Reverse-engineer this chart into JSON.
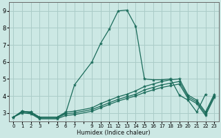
{
  "xlabel": "Humidex (Indice chaleur)",
  "bg_color": "#cce8e4",
  "grid_color": "#aaccc8",
  "line_color": "#1a6b5a",
  "xlim": [
    -0.5,
    23.5
  ],
  "ylim": [
    2.5,
    9.5
  ],
  "yticks": [
    3,
    4,
    5,
    6,
    7,
    8,
    9
  ],
  "xticks": [
    0,
    1,
    2,
    3,
    4,
    5,
    6,
    7,
    8,
    9,
    10,
    11,
    12,
    13,
    14,
    15,
    16,
    17,
    18,
    19,
    20,
    21,
    22,
    23
  ],
  "xticklabels": [
    "0",
    "1",
    "2",
    "3",
    "",
    "5",
    "6",
    "7",
    "",
    "9",
    "10",
    "11",
    "12",
    "13",
    "14",
    "15",
    "16",
    "17",
    "18",
    "19",
    "20",
    "21",
    "22",
    "23"
  ],
  "lines": [
    {
      "x": [
        0,
        1,
        2,
        3,
        5,
        6,
        7,
        9,
        10,
        11,
        12,
        13,
        14,
        15,
        16,
        17,
        18,
        19,
        20,
        21,
        22
      ],
      "y": [
        2.75,
        3.1,
        3.05,
        2.75,
        2.75,
        3.0,
        4.65,
        6.0,
        7.1,
        7.95,
        9.0,
        9.05,
        8.1,
        5.0,
        4.95,
        4.95,
        5.0,
        4.05,
        3.75,
        3.05,
        4.1
      ]
    },
    {
      "x": [
        0,
        1,
        2,
        3,
        5,
        6,
        7,
        9,
        10,
        11,
        12,
        13,
        14,
        15,
        16,
        17,
        18,
        19,
        20,
        21,
        22,
        23
      ],
      "y": [
        2.75,
        3.1,
        3.05,
        2.75,
        2.75,
        3.05,
        3.1,
        3.3,
        3.55,
        3.75,
        3.95,
        4.1,
        4.3,
        4.55,
        4.7,
        4.85,
        4.95,
        5.0,
        4.05,
        3.75,
        3.05,
        4.1
      ]
    },
    {
      "x": [
        0,
        1,
        2,
        3,
        5,
        6,
        7,
        9,
        10,
        11,
        12,
        13,
        14,
        15,
        16,
        17,
        18,
        19,
        20,
        21,
        22,
        23
      ],
      "y": [
        2.75,
        3.05,
        3.0,
        2.7,
        2.7,
        2.95,
        3.0,
        3.2,
        3.4,
        3.6,
        3.8,
        3.95,
        4.1,
        4.35,
        4.5,
        4.65,
        4.75,
        4.85,
        3.95,
        3.65,
        2.95,
        4.0
      ]
    },
    {
      "x": [
        0,
        1,
        2,
        3,
        5,
        6,
        7,
        9,
        10,
        11,
        12,
        13,
        14,
        15,
        16,
        17,
        18,
        19,
        20,
        21,
        22,
        23
      ],
      "y": [
        2.75,
        3.0,
        2.95,
        2.65,
        2.65,
        2.85,
        2.9,
        3.1,
        3.3,
        3.5,
        3.7,
        3.85,
        4.0,
        4.2,
        4.35,
        4.5,
        4.6,
        4.7,
        3.85,
        3.55,
        2.85,
        3.9
      ]
    }
  ]
}
